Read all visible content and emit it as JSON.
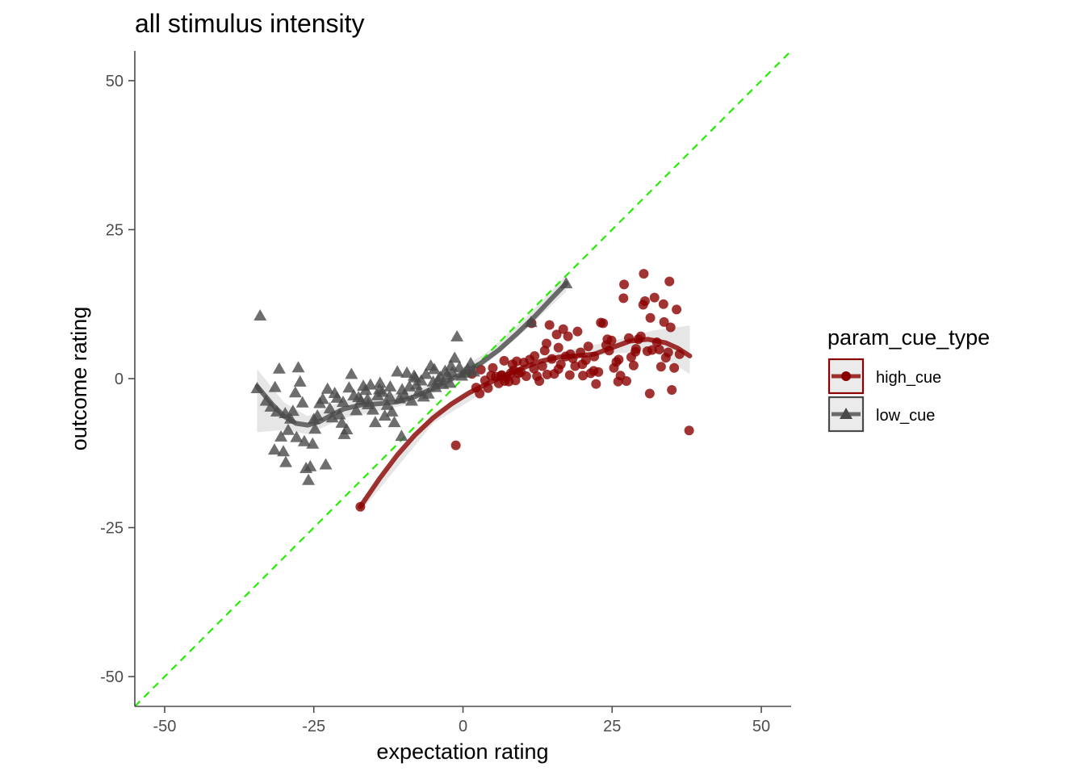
{
  "chart_data": {
    "type": "scatter",
    "title": "all stimulus intensity",
    "xlabel": "expectation rating",
    "ylabel": "outcome rating",
    "xlim": [
      -55,
      55
    ],
    "ylim": [
      -55,
      55
    ],
    "x_ticks": [
      -50,
      -25,
      0,
      25,
      50
    ],
    "y_ticks": [
      -50,
      -25,
      0,
      25,
      50
    ],
    "grid": false,
    "legend": {
      "title": "param_cue_type",
      "position": "right"
    },
    "reference_line": {
      "slope": 1,
      "intercept": 0,
      "style": "dashed",
      "color": "#22ee00"
    },
    "colors": {
      "high_cue": "#8b0000",
      "low_cue": "#4a4a4a",
      "band": "#d9d9d9"
    },
    "series": [
      {
        "name": "high_cue",
        "marker": "circle",
        "points": [
          [
            -17.2,
            -21.5
          ],
          [
            -1.2,
            -11.2
          ],
          [
            1.5,
            0.8
          ],
          [
            2.2,
            -1.5
          ],
          [
            2.8,
            -2.5
          ],
          [
            3.0,
            1.5
          ],
          [
            3.7,
            -0.3
          ],
          [
            4.2,
            -1.6
          ],
          [
            4.7,
            0.5
          ],
          [
            5.0,
            1.8
          ],
          [
            5.5,
            0.3
          ],
          [
            6.0,
            -0.8
          ],
          [
            6.4,
            0.5
          ],
          [
            6.9,
            3.0
          ],
          [
            7.3,
            0.2
          ],
          [
            7.7,
            -0.5
          ],
          [
            8.3,
            2.4
          ],
          [
            8.5,
            1.4
          ],
          [
            8.8,
            -0.3
          ],
          [
            9.3,
            0.9
          ],
          [
            9.7,
            1.1
          ],
          [
            10.2,
            2.7
          ],
          [
            10.6,
            0.4
          ],
          [
            11.2,
            3.2
          ],
          [
            11.5,
            9.3
          ],
          [
            11.9,
            1.7
          ],
          [
            12.4,
            0.4
          ],
          [
            12.8,
            -0.4
          ],
          [
            13.3,
            2.1
          ],
          [
            13.7,
            4.7
          ],
          [
            14.1,
            0.7
          ],
          [
            14.5,
            9.0
          ],
          [
            14.9,
            3.3
          ],
          [
            15.3,
            0.8
          ],
          [
            15.7,
            7.4
          ],
          [
            16.0,
            5.2
          ],
          [
            16.4,
            2.4
          ],
          [
            16.8,
            8.3
          ],
          [
            17.2,
            3.7
          ],
          [
            17.6,
            7.1
          ],
          [
            17.9,
            0.6
          ],
          [
            18.4,
            3.4
          ],
          [
            18.8,
            2.1
          ],
          [
            19.2,
            7.9
          ],
          [
            19.7,
            4.4
          ],
          [
            20.1,
            0.5
          ],
          [
            20.6,
            3.1
          ],
          [
            21.0,
            5.4
          ],
          [
            21.4,
            0.9
          ],
          [
            21.9,
            1.3
          ],
          [
            22.3,
            -0.9
          ],
          [
            22.7,
            1.1
          ],
          [
            23.1,
            9.4
          ],
          [
            23.5,
            9.3
          ],
          [
            24.0,
            5.6
          ],
          [
            24.5,
            4.7
          ],
          [
            24.9,
            6.4
          ],
          [
            25.3,
            1.8
          ],
          [
            25.7,
            2.8
          ],
          [
            26.0,
            -0.5
          ],
          [
            26.4,
            0.5
          ],
          [
            26.9,
            13.5
          ],
          [
            27.0,
            15.8
          ],
          [
            27.4,
            -0.4
          ],
          [
            27.8,
            6.8
          ],
          [
            28.2,
            3.6
          ],
          [
            28.6,
            2.2
          ],
          [
            29.0,
            5.0
          ],
          [
            29.4,
            6.6
          ],
          [
            29.8,
            7.1
          ],
          [
            30.2,
            12.4
          ],
          [
            30.3,
            17.6
          ],
          [
            30.5,
            13.0
          ],
          [
            30.9,
            4.6
          ],
          [
            31.3,
            -2.5
          ],
          [
            31.7,
            4.8
          ],
          [
            32.1,
            13.6
          ],
          [
            32.5,
            6.1
          ],
          [
            32.9,
            4.9
          ],
          [
            33.2,
            2.0
          ],
          [
            33.6,
            12.5
          ],
          [
            34.0,
            3.5
          ],
          [
            34.4,
            4.4
          ],
          [
            34.6,
            16.3
          ],
          [
            34.8,
            8.6
          ],
          [
            35.0,
            -1.9
          ],
          [
            35.4,
            1.8
          ],
          [
            35.8,
            11.6
          ],
          [
            36.3,
            4.1
          ],
          [
            37.9,
            -8.7
          ],
          [
            6.5,
            0.6
          ],
          [
            7.0,
            -0.4
          ],
          [
            8.0,
            0.9
          ],
          [
            9.0,
            2.9
          ],
          [
            12.0,
            3.8
          ],
          [
            14.0,
            5.9
          ],
          [
            16.0,
            1.6
          ],
          [
            18.0,
            4.1
          ],
          [
            20.0,
            2.4
          ],
          [
            22.0,
            3.7
          ],
          [
            24.2,
            6.6
          ],
          [
            26.1,
            3.2
          ],
          [
            28.9,
            4.5
          ],
          [
            31.4,
            10.2
          ],
          [
            33.7,
            9.5
          ]
        ],
        "fit": [
          [
            -17.2,
            -21.5
          ],
          [
            -14,
            -16.8
          ],
          [
            -11,
            -12.8
          ],
          [
            -8,
            -9.4
          ],
          [
            -5,
            -6.6
          ],
          [
            -2,
            -4.3
          ],
          [
            1,
            -2.4
          ],
          [
            4,
            -0.9
          ],
          [
            7,
            0.5
          ],
          [
            10,
            1.8
          ],
          [
            13,
            2.9
          ],
          [
            16,
            3.6
          ],
          [
            19,
            3.8
          ],
          [
            22,
            4.1
          ],
          [
            25,
            5.2
          ],
          [
            28,
            6.3
          ],
          [
            31,
            6.6
          ],
          [
            34,
            6.0
          ],
          [
            36,
            5.1
          ],
          [
            38,
            3.8
          ]
        ],
        "fit_band": [
          [
            -17.2,
            -22.4,
            -20.6
          ],
          [
            -5,
            -7.5,
            -5.7
          ],
          [
            5,
            -1.4,
            0.1
          ],
          [
            15,
            2.6,
            4.2
          ],
          [
            25,
            4.2,
            6.3
          ],
          [
            32,
            4.6,
            8.1
          ],
          [
            38,
            0.8,
            8.9
          ]
        ]
      },
      {
        "name": "low_cue",
        "marker": "triangle",
        "points": [
          [
            -34.5,
            -1.7
          ],
          [
            -34.0,
            10.5
          ],
          [
            -33.0,
            -3.8
          ],
          [
            -32.2,
            -4.8
          ],
          [
            -31.5,
            -1.5
          ],
          [
            -31.2,
            -5.6
          ],
          [
            -30.8,
            1.6
          ],
          [
            -30.5,
            -9.8
          ],
          [
            -30.1,
            -12.3
          ],
          [
            -29.7,
            -14.1
          ],
          [
            -29.3,
            -8.7
          ],
          [
            -28.9,
            -6.8
          ],
          [
            -28.5,
            -5.5
          ],
          [
            -28.1,
            -2.4
          ],
          [
            -27.6,
            1.8
          ],
          [
            -27.3,
            -0.6
          ],
          [
            -26.9,
            -4.1
          ],
          [
            -26.6,
            -10.6
          ],
          [
            -26.3,
            -15.1
          ],
          [
            -25.9,
            -17.1
          ],
          [
            -25.6,
            -14.8
          ],
          [
            -25.2,
            -11.0
          ],
          [
            -24.8,
            -8.5
          ],
          [
            -24.4,
            -6.3
          ],
          [
            -24.0,
            -4.2
          ],
          [
            -23.5,
            -3.5
          ],
          [
            -23.0,
            -14.5
          ],
          [
            -22.7,
            -1.8
          ],
          [
            -22.3,
            -5.1
          ],
          [
            -21.9,
            -6.6
          ],
          [
            -21.5,
            -2.5
          ],
          [
            -21.1,
            -3.3
          ],
          [
            -20.7,
            -6.1
          ],
          [
            -20.3,
            -7.5
          ],
          [
            -19.9,
            -9.4
          ],
          [
            -19.5,
            -8.6
          ],
          [
            -19.1,
            -1.6
          ],
          [
            -18.7,
            0.7
          ],
          [
            -18.3,
            -2.9
          ],
          [
            -17.9,
            -5.4
          ],
          [
            -17.5,
            -3.2
          ],
          [
            -17.1,
            -3.7
          ],
          [
            -16.7,
            -1.3
          ],
          [
            -16.3,
            -2.0
          ],
          [
            -15.9,
            -4.4
          ],
          [
            -15.5,
            -1.1
          ],
          [
            -15.1,
            -5.3
          ],
          [
            -14.7,
            -7.4
          ],
          [
            -14.3,
            -2.9
          ],
          [
            -13.9,
            -0.8
          ],
          [
            -13.5,
            -2.3
          ],
          [
            -13.1,
            -6.3
          ],
          [
            -12.7,
            -4.5
          ],
          [
            -12.3,
            -3.0
          ],
          [
            -11.9,
            -5.6
          ],
          [
            -11.5,
            -7.4
          ],
          [
            -11.0,
            1.1
          ],
          [
            -10.6,
            -3.4
          ],
          [
            -10.2,
            -1.9
          ],
          [
            -9.8,
            -2.8
          ],
          [
            -9.4,
            0.9
          ],
          [
            -9.0,
            -1.4
          ],
          [
            -8.6,
            -3.8
          ],
          [
            -8.2,
            0.4
          ],
          [
            -7.8,
            -1.1
          ],
          [
            -7.4,
            -2.2
          ],
          [
            -7.0,
            -0.4
          ],
          [
            -6.6,
            -3.1
          ],
          [
            -6.2,
            0.7
          ],
          [
            -5.8,
            -2.6
          ],
          [
            -5.4,
            2.1
          ],
          [
            -5.0,
            -0.6
          ],
          [
            -4.6,
            -1.5
          ],
          [
            -4.2,
            -0.3
          ],
          [
            -3.8,
            0.2
          ],
          [
            -3.4,
            -1.0
          ],
          [
            -3.0,
            1.2
          ],
          [
            -2.6,
            0.6
          ],
          [
            -2.2,
            -0.8
          ],
          [
            -1.8,
            1.0
          ],
          [
            -1.4,
            3.4
          ],
          [
            -1.0,
            7.0
          ],
          [
            -0.6,
            1.8
          ],
          [
            -0.2,
            0.4
          ],
          [
            0.3,
            0.9
          ],
          [
            0.8,
            1.5
          ],
          [
            1.3,
            2.5
          ],
          [
            1.8,
            1.1
          ],
          [
            -10.3,
            -9.7
          ],
          [
            -29.8,
            -5.9
          ],
          [
            -31.6,
            -12.0
          ],
          [
            -27.9,
            -9.9
          ],
          [
            -25.0,
            -6.9
          ],
          [
            -20.1,
            -4.0
          ],
          [
            -14.0,
            -1.9
          ],
          [
            -8.0,
            0.1
          ],
          [
            -12.2,
            -1.4
          ],
          [
            -16.0,
            -3.5
          ],
          [
            -4.8,
            1.5
          ],
          [
            -2.0,
            2.1
          ],
          [
            11.4,
            9.4
          ],
          [
            17.3,
            15.9
          ]
        ],
        "fit": [
          [
            -34.5,
            -1.3
          ],
          [
            -32,
            -4.3
          ],
          [
            -30,
            -6.3
          ],
          [
            -28,
            -7.5
          ],
          [
            -26,
            -7.8
          ],
          [
            -24,
            -7.2
          ],
          [
            -22,
            -6.1
          ],
          [
            -20,
            -5.1
          ],
          [
            -17,
            -4.4
          ],
          [
            -14,
            -4.2
          ],
          [
            -11,
            -3.9
          ],
          [
            -8,
            -3.0
          ],
          [
            -5,
            -1.6
          ],
          [
            -2,
            -0.1
          ],
          [
            0,
            0.9
          ],
          [
            3,
            2.6
          ],
          [
            6,
            4.8
          ],
          [
            9,
            7.5
          ],
          [
            12,
            10.4
          ],
          [
            15,
            13.6
          ],
          [
            17.3,
            16.0
          ]
        ],
        "fit_band": [
          [
            -34.5,
            -9.0,
            1.6
          ],
          [
            -30,
            -8.6,
            -4.0
          ],
          [
            -26,
            -9.3,
            -6.3
          ],
          [
            -20,
            -6.6,
            -3.6
          ],
          [
            -14,
            -5.4,
            -3.0
          ],
          [
            -8,
            -4.0,
            -2.0
          ],
          [
            -2,
            -0.9,
            0.7
          ],
          [
            4,
            2.6,
            4.4
          ],
          [
            10,
            7.7,
            9.7
          ],
          [
            17.3,
            14.6,
            17.4
          ]
        ]
      }
    ]
  }
}
